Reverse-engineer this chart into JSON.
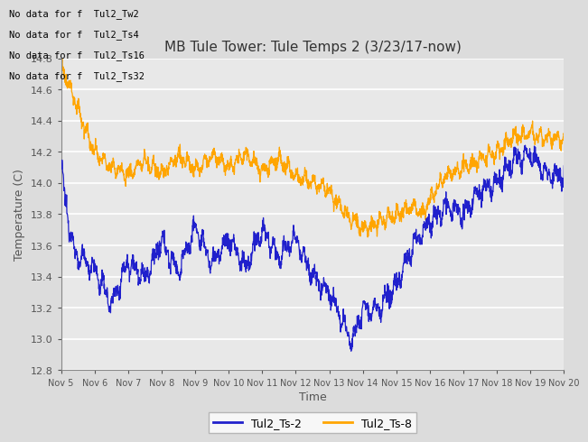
{
  "title": "MB Tule Tower: Tule Temps 2 (3/23/17-now)",
  "xlabel": "Time",
  "ylabel": "Temperature (C)",
  "ylim": [
    12.8,
    14.8
  ],
  "xlim": [
    0,
    15
  ],
  "bg_color": "#dcdcdc",
  "plot_bg_color": "#e8e8e8",
  "grid_color": "white",
  "line1_color": "#2020cc",
  "line2_color": "#ffa500",
  "line1_label": "Tul2_Ts-2",
  "line2_label": "Tul2_Ts-8",
  "xtick_labels": [
    "Nov 5",
    "Nov 6",
    "Nov 7",
    "Nov 8",
    "Nov 9",
    "Nov 10",
    "Nov 11",
    "Nov 12",
    "Nov 13",
    "Nov 14",
    "Nov 15",
    "Nov 16",
    "Nov 17",
    "Nov 18",
    "Nov 19",
    "Nov 20"
  ],
  "nodata_lines": [
    "No data for f  Tul2_Tw2",
    "No data for f  Tul2_Ts4",
    "No data for f  Tul2_Ts16",
    "No data for f  Tul2_Ts32"
  ],
  "nodata_color": "#000000",
  "yticks": [
    12.8,
    13.0,
    13.2,
    13.4,
    13.6,
    13.8,
    14.0,
    14.2,
    14.4,
    14.6,
    14.8
  ],
  "blue_knots_t": [
    0.0,
    0.15,
    0.4,
    1.0,
    1.5,
    2.0,
    2.5,
    3.0,
    3.5,
    4.0,
    4.5,
    5.0,
    5.5,
    6.0,
    6.5,
    7.0,
    7.5,
    8.0,
    8.5,
    8.7,
    9.0,
    9.5,
    10.0,
    10.5,
    11.0,
    11.5,
    12.0,
    12.5,
    13.0,
    13.5,
    14.0,
    14.5,
    15.0
  ],
  "blue_knots_y": [
    14.1,
    13.85,
    13.55,
    13.45,
    13.22,
    13.5,
    13.38,
    13.62,
    13.43,
    13.72,
    13.48,
    13.65,
    13.45,
    13.7,
    13.52,
    13.65,
    13.4,
    13.3,
    13.05,
    13.0,
    13.2,
    13.18,
    13.35,
    13.6,
    13.75,
    13.85,
    13.8,
    13.95,
    14.0,
    14.15,
    14.18,
    14.05,
    14.05
  ],
  "orange_knots_t": [
    0.0,
    0.3,
    0.6,
    1.0,
    1.5,
    2.0,
    2.5,
    3.0,
    3.5,
    4.0,
    4.5,
    5.0,
    5.5,
    6.0,
    6.5,
    7.0,
    7.5,
    8.0,
    8.5,
    9.0,
    9.5,
    10.0,
    10.5,
    10.8,
    11.0,
    11.5,
    12.0,
    12.5,
    13.0,
    13.5,
    14.0,
    14.5,
    15.0
  ],
  "orange_knots_y": [
    14.75,
    14.6,
    14.42,
    14.2,
    14.1,
    14.05,
    14.15,
    14.05,
    14.18,
    14.08,
    14.18,
    14.1,
    14.18,
    14.08,
    14.15,
    14.05,
    14.0,
    13.95,
    13.8,
    13.7,
    13.75,
    13.8,
    13.85,
    13.8,
    13.9,
    14.05,
    14.1,
    14.15,
    14.2,
    14.3,
    14.32,
    14.28,
    14.28
  ]
}
